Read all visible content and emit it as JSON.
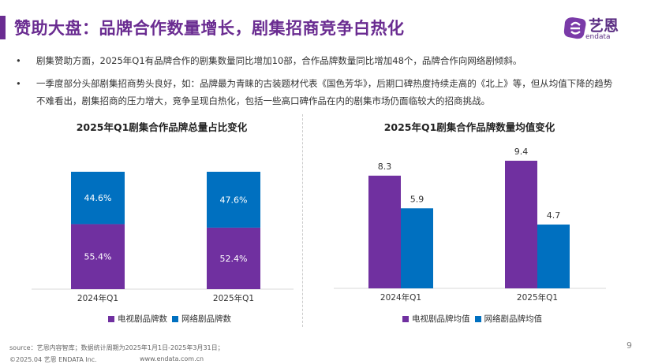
{
  "header": {
    "title": "赞助大盘：品牌合作数量增长，剧集招商竞争白热化",
    "logo_text": "艺恩",
    "logo_sub": "endata"
  },
  "bullets": [
    {
      "marker": "•",
      "text": "剧集赞助方面，2025年Q1有品牌合作的剧集数量同比增加10部，合作品牌数量同比增加48个，品牌合作向网络剧倾斜。"
    },
    {
      "marker": "•",
      "text": "一季度部分头部剧集招商势头良好，如：品牌最为青睐的古装题材代表《国色芳华》，后期口碑热度持续走高的《北上》等，但从均值下降的趋势不难看出，剧集招商的压力增大，竞争呈现白热化，包括一些高口碑作品在内的剧集市场仍面临较大的招商挑战。"
    }
  ],
  "colors": {
    "accent": "#6a2c91",
    "tv": "#7030a0",
    "web": "#0070c0"
  },
  "chart_data": [
    {
      "type": "bar",
      "stacked": true,
      "percent": true,
      "title": "2025年Q1剧集合作品牌总量占比变化",
      "categories": [
        "2024年Q1",
        "2025年Q1"
      ],
      "series": [
        {
          "name": "电视剧品牌数",
          "values": [
            55.4,
            52.4
          ],
          "labels": [
            "55.4%",
            "52.4%"
          ]
        },
        {
          "name": "网络剧品牌数",
          "values": [
            44.6,
            47.6
          ],
          "labels": [
            "44.6%",
            "47.6%"
          ]
        }
      ],
      "ylim": [
        0,
        100
      ],
      "grid": false,
      "legend": "bottom"
    },
    {
      "type": "bar",
      "title": "2025年Q1剧集合作品牌数量均值变化",
      "categories": [
        "2024年Q1",
        "2025年Q1"
      ],
      "series": [
        {
          "name": "电视剧品牌均值",
          "values": [
            8.3,
            9.4
          ],
          "labels": [
            "8.3",
            "9.4"
          ]
        },
        {
          "name": "网络剧品牌均值",
          "values": [
            5.9,
            4.7
          ],
          "labels": [
            "5.9",
            "4.7"
          ]
        }
      ],
      "ylim": [
        0,
        9.4
      ],
      "grid": false,
      "legend": "bottom"
    }
  ],
  "footer": {
    "source": "source：艺恩内容智库；数据统计周期为2025年1月1日-2025年3月31日；",
    "copyright": "©2025.04 艺恩 ENDATA Inc.",
    "website": "www.endata.com.cn",
    "page": "9"
  }
}
